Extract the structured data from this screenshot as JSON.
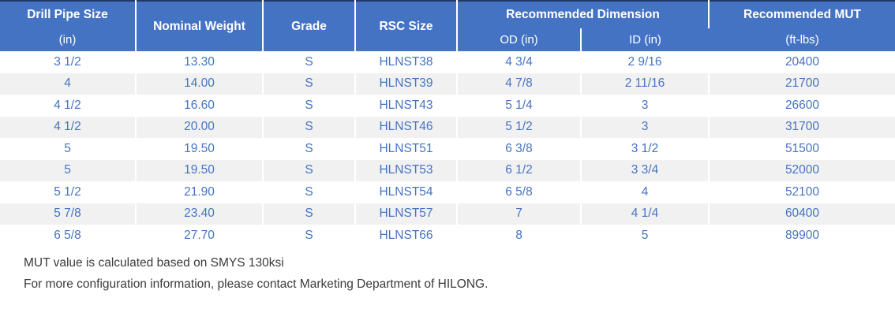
{
  "table": {
    "header": {
      "drill_pipe_size": "Drill Pipe Size",
      "drill_pipe_size_unit": "(in)",
      "nominal_weight": "Nominal Weight",
      "grade": "Grade",
      "rsc_size": "RSC Size",
      "recommended_dimension": "Recommended Dimension",
      "od": "OD (in)",
      "id": "ID (in)",
      "recommended_mut": "Recommended MUT",
      "recommended_mut_unit": "(ft-lbs)"
    },
    "rows": [
      [
        "3 1/2",
        "13.30",
        "S",
        "HLNST38",
        "4 3/4",
        "2 9/16",
        "20400"
      ],
      [
        "4",
        "14.00",
        "S",
        "HLNST39",
        "4 7/8",
        "2 11/16",
        "21700"
      ],
      [
        "4 1/2",
        "16.60",
        "S",
        "HLNST43",
        "5 1/4",
        "3",
        "26600"
      ],
      [
        "4 1/2",
        "20.00",
        "S",
        "HLNST46",
        "5 1/2",
        "3",
        "31700"
      ],
      [
        "5",
        "19.50",
        "S",
        "HLNST51",
        "6 3/8",
        "3 1/2",
        "51500"
      ],
      [
        "5",
        "19.50",
        "S",
        "HLNST53",
        "6 1/2",
        "3 3/4",
        "52000"
      ],
      [
        "5 1/2",
        "21.90",
        "S",
        "HLNST54",
        "6 5/8",
        "4",
        "52100"
      ],
      [
        "5 7/8",
        "23.40",
        "S",
        "HLNST57",
        "7",
        "4 1/4",
        "60400"
      ],
      [
        "6 5/8",
        "27.70",
        "S",
        "HLNST66",
        "8",
        "5",
        "89900"
      ]
    ]
  },
  "notes": {
    "line1": "MUT value is calculated based on SMYS 130ksi",
    "line2": "For more configuration information, please contact Marketing Department of HILONG."
  },
  "colors": {
    "header_bg": "#4573C4",
    "header_text": "#FFFFFF",
    "body_text": "#4573C4",
    "stripe_bg": "#F1F1F1",
    "top_border": "#1F3864",
    "note_text": "#3B3B3B"
  }
}
